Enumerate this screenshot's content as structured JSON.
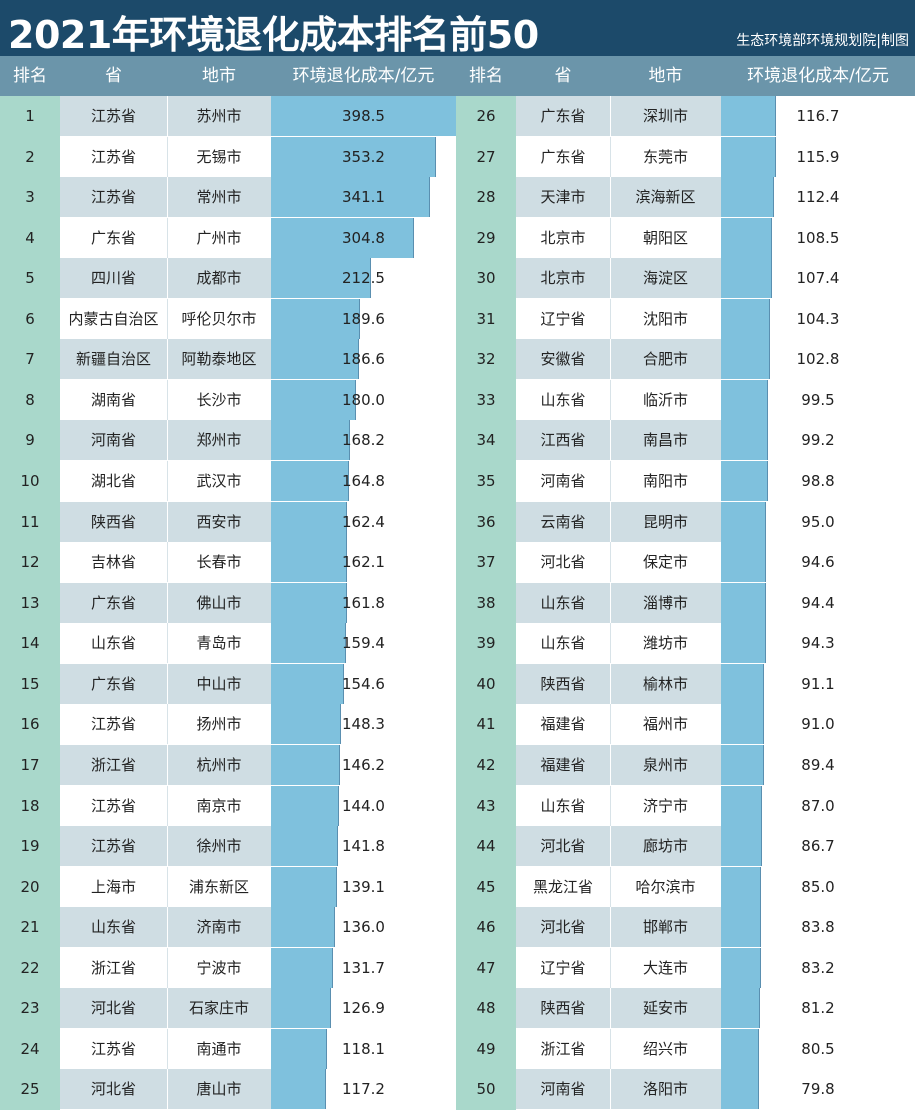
{
  "title": "2021年环境退化成本排名前50",
  "source": "生态环境部环境规划院|制图",
  "headers": {
    "rank": "排名",
    "province": "省",
    "city": "地市",
    "value": "环境退化成本/亿元"
  },
  "colors": {
    "title_bg": "#1c4a6a",
    "header_bg": "#6b95aa",
    "rank_bg": "#a9d8cb",
    "stripe": "#cfdde3",
    "bar": "#7fc1dd"
  },
  "chart_data": {
    "type": "table",
    "value_label": "环境退化成本/亿元",
    "rows": [
      {
        "rank": "1",
        "province": "江苏省",
        "city": "苏州市",
        "value": 398.5
      },
      {
        "rank": "2",
        "province": "江苏省",
        "city": "无锡市",
        "value": 353.2
      },
      {
        "rank": "3",
        "province": "江苏省",
        "city": "常州市",
        "value": 341.1
      },
      {
        "rank": "4",
        "province": "广东省",
        "city": "广州市",
        "value": 304.8
      },
      {
        "rank": "5",
        "province": "四川省",
        "city": "成都市",
        "value": 212.5
      },
      {
        "rank": "6",
        "province": "内蒙古自治区",
        "city": "呼伦贝尔市",
        "value": 189.6
      },
      {
        "rank": "7",
        "province": "新疆自治区",
        "city": "阿勒泰地区",
        "value": 186.6
      },
      {
        "rank": "8",
        "province": "湖南省",
        "city": "长沙市",
        "value": 180.0
      },
      {
        "rank": "9",
        "province": "河南省",
        "city": "郑州市",
        "value": 168.2
      },
      {
        "rank": "10",
        "province": "湖北省",
        "city": "武汉市",
        "value": 164.8
      },
      {
        "rank": "11",
        "province": "陕西省",
        "city": "西安市",
        "value": 162.4
      },
      {
        "rank": "12",
        "province": "吉林省",
        "city": "长春市",
        "value": 162.1
      },
      {
        "rank": "13",
        "province": "广东省",
        "city": "佛山市",
        "value": 161.8
      },
      {
        "rank": "14",
        "province": "山东省",
        "city": "青岛市",
        "value": 159.4
      },
      {
        "rank": "15",
        "province": "广东省",
        "city": "中山市",
        "value": 154.6
      },
      {
        "rank": "16",
        "province": "江苏省",
        "city": "扬州市",
        "value": 148.3
      },
      {
        "rank": "17",
        "province": "浙江省",
        "city": "杭州市",
        "value": 146.2
      },
      {
        "rank": "18",
        "province": "江苏省",
        "city": "南京市",
        "value": 144.0
      },
      {
        "rank": "19",
        "province": "江苏省",
        "city": "徐州市",
        "value": 141.8
      },
      {
        "rank": "20",
        "province": "上海市",
        "city": "浦东新区",
        "value": 139.1
      },
      {
        "rank": "21",
        "province": "山东省",
        "city": "济南市",
        "value": 136.0
      },
      {
        "rank": "22",
        "province": "浙江省",
        "city": "宁波市",
        "value": 131.7
      },
      {
        "rank": "23",
        "province": "河北省",
        "city": "石家庄市",
        "value": 126.9
      },
      {
        "rank": "24",
        "province": "江苏省",
        "city": "南通市",
        "value": 118.1
      },
      {
        "rank": "25",
        "province": "河北省",
        "city": "唐山市",
        "value": 117.2
      },
      {
        "rank": "26",
        "province": "广东省",
        "city": "深圳市",
        "value": 116.7
      },
      {
        "rank": "27",
        "province": "广东省",
        "city": "东莞市",
        "value": 115.9
      },
      {
        "rank": "28",
        "province": "天津市",
        "city": "滨海新区",
        "value": 112.4
      },
      {
        "rank": "29",
        "province": "北京市",
        "city": "朝阳区",
        "value": 108.5
      },
      {
        "rank": "30",
        "province": "北京市",
        "city": "海淀区",
        "value": 107.4
      },
      {
        "rank": "31",
        "province": "辽宁省",
        "city": "沈阳市",
        "value": 104.3
      },
      {
        "rank": "32",
        "province": "安徽省",
        "city": "合肥市",
        "value": 102.8
      },
      {
        "rank": "33",
        "province": "山东省",
        "city": "临沂市",
        "value": 99.5
      },
      {
        "rank": "34",
        "province": "江西省",
        "city": "南昌市",
        "value": 99.2
      },
      {
        "rank": "35",
        "province": "河南省",
        "city": "南阳市",
        "value": 98.8
      },
      {
        "rank": "36",
        "province": "云南省",
        "city": "昆明市",
        "value": 95.0
      },
      {
        "rank": "37",
        "province": "河北省",
        "city": "保定市",
        "value": 94.6
      },
      {
        "rank": "38",
        "province": "山东省",
        "city": "淄博市",
        "value": 94.4
      },
      {
        "rank": "39",
        "province": "山东省",
        "city": "潍坊市",
        "value": 94.3
      },
      {
        "rank": "40",
        "province": "陕西省",
        "city": "榆林市",
        "value": 91.1
      },
      {
        "rank": "41",
        "province": "福建省",
        "city": "福州市",
        "value": 91.0
      },
      {
        "rank": "42",
        "province": "福建省",
        "city": "泉州市",
        "value": 89.4
      },
      {
        "rank": "43",
        "province": "山东省",
        "city": "济宁市",
        "value": 87.0
      },
      {
        "rank": "44",
        "province": "河北省",
        "city": "廊坊市",
        "value": 86.7
      },
      {
        "rank": "45",
        "province": "黑龙江省",
        "city": "哈尔滨市",
        "value": 85.0
      },
      {
        "rank": "46",
        "province": "河北省",
        "city": "邯郸市",
        "value": 83.8
      },
      {
        "rank": "47",
        "province": "辽宁省",
        "city": "大连市",
        "value": 83.2
      },
      {
        "rank": "48",
        "province": "陕西省",
        "city": "延安市",
        "value": 81.2
      },
      {
        "rank": "49",
        "province": "浙江省",
        "city": "绍兴市",
        "value": 80.5
      },
      {
        "rank": "50",
        "province": "河南省",
        "city": "洛阳市",
        "value": 79.8
      }
    ]
  }
}
